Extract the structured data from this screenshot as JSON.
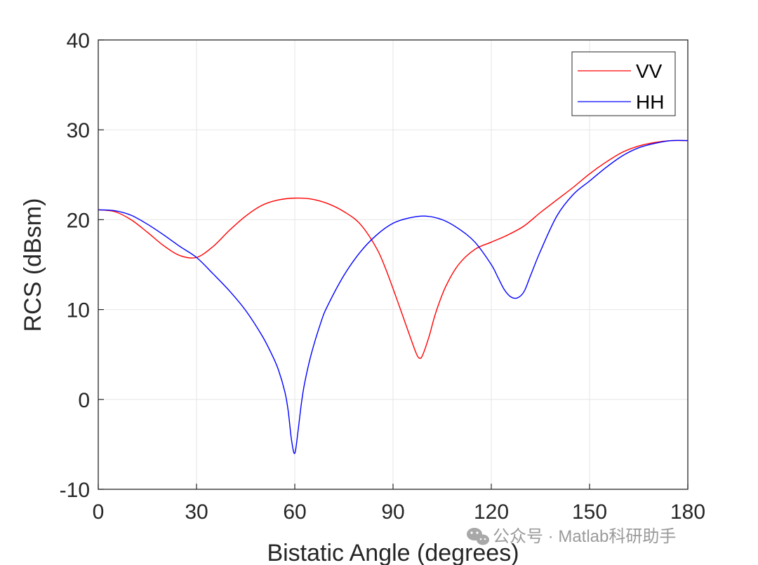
{
  "chart_data": {
    "type": "line",
    "title": "",
    "xlabel": "Bistatic Angle (degrees)",
    "ylabel": "RCS (dBsm)",
    "xlim": [
      0,
      180
    ],
    "ylim": [
      -10,
      40
    ],
    "xticks": [
      0,
      30,
      60,
      90,
      120,
      150,
      180
    ],
    "yticks": [
      -10,
      0,
      10,
      20,
      30,
      40
    ],
    "grid": true,
    "legend_position": "top-right",
    "series": [
      {
        "name": "VV",
        "color": "#ff0000",
        "x": [
          0,
          5,
          10,
          15,
          20,
          25,
          30,
          35,
          40,
          45,
          50,
          55,
          60,
          65,
          70,
          75,
          80,
          85,
          88,
          92,
          95,
          97,
          98,
          99,
          101,
          103,
          106,
          110,
          115,
          120,
          125,
          130,
          135,
          140,
          145,
          150,
          155,
          160,
          165,
          170,
          175,
          180
        ],
        "y": [
          21.1,
          20.9,
          20.0,
          18.6,
          17.1,
          16.0,
          15.8,
          17.0,
          18.8,
          20.4,
          21.6,
          22.2,
          22.4,
          22.3,
          21.8,
          20.9,
          19.5,
          16.8,
          14.3,
          10.3,
          7.2,
          5.2,
          4.6,
          4.9,
          7.0,
          9.6,
          12.5,
          15.0,
          16.7,
          17.5,
          18.3,
          19.3,
          20.8,
          22.2,
          23.6,
          25.1,
          26.4,
          27.5,
          28.2,
          28.6,
          28.8,
          28.8
        ]
      },
      {
        "name": "HH",
        "color": "#0000ff",
        "x": [
          0,
          5,
          10,
          15,
          20,
          25,
          30,
          35,
          40,
          45,
          50,
          53,
          55,
          57,
          58,
          59,
          60,
          61,
          62,
          63,
          65,
          68,
          70,
          75,
          80,
          85,
          90,
          95,
          100,
          105,
          110,
          115,
          120,
          122,
          124,
          126,
          128,
          130,
          132,
          135,
          140,
          145,
          150,
          155,
          160,
          165,
          170,
          175,
          180
        ],
        "y": [
          21.1,
          21.0,
          20.5,
          19.5,
          18.3,
          17.0,
          15.8,
          14.0,
          12.1,
          9.9,
          7.1,
          5.0,
          3.3,
          0.8,
          -1.3,
          -4.5,
          -6.0,
          -3.5,
          -0.5,
          1.8,
          5.0,
          8.6,
          10.4,
          13.8,
          16.4,
          18.3,
          19.6,
          20.2,
          20.4,
          20.0,
          19.0,
          17.5,
          15.0,
          13.6,
          12.2,
          11.4,
          11.3,
          12.0,
          13.8,
          16.5,
          20.4,
          22.8,
          24.3,
          25.8,
          27.1,
          28.0,
          28.5,
          28.8,
          28.8
        ]
      }
    ]
  },
  "watermark": {
    "icon": "wechat-icon",
    "text": "公众号 · Matlab科研助手"
  }
}
